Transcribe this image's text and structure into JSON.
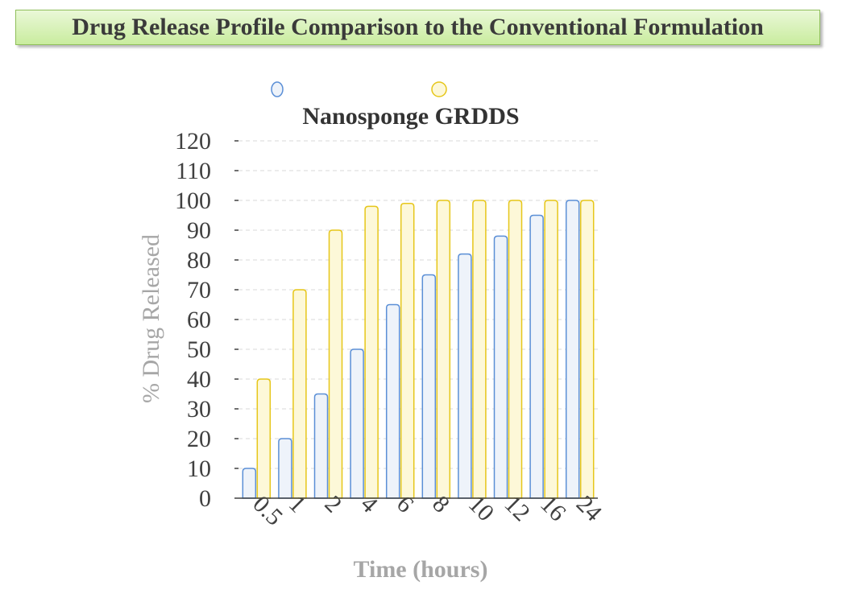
{
  "title": "Drug Release Profile Comparison to the Conventional Formulation",
  "colors": {
    "series1_stroke": "#5b8fd6",
    "series1_fill": "#eef3fa",
    "series2_stroke": "#e6c619",
    "series2_fill": "#fdf8d8",
    "grid": "#d9d9d9",
    "axis_label": "#a6a6a6",
    "tick_label": "#404040"
  },
  "chart_data": {
    "type": "bar",
    "legend_text": "Nanosponge GRDDS",
    "legend_position": "top",
    "categories": [
      "0.5",
      "1",
      "2",
      "4",
      "6",
      "8",
      "10",
      "12",
      "16",
      "24"
    ],
    "series": [
      {
        "values": [
          10,
          20,
          35,
          50,
          65,
          75,
          82,
          88,
          95,
          100
        ]
      },
      {
        "values": [
          40,
          70,
          90,
          98,
          99,
          100,
          100,
          100,
          100,
          100
        ]
      }
    ],
    "xlabel": "Time (hours)",
    "ylabel": "% Drug Released",
    "ylim": [
      0,
      120
    ],
    "yticks": [
      0,
      10,
      20,
      30,
      40,
      50,
      60,
      70,
      80,
      90,
      100,
      110,
      120
    ],
    "grid": true
  }
}
